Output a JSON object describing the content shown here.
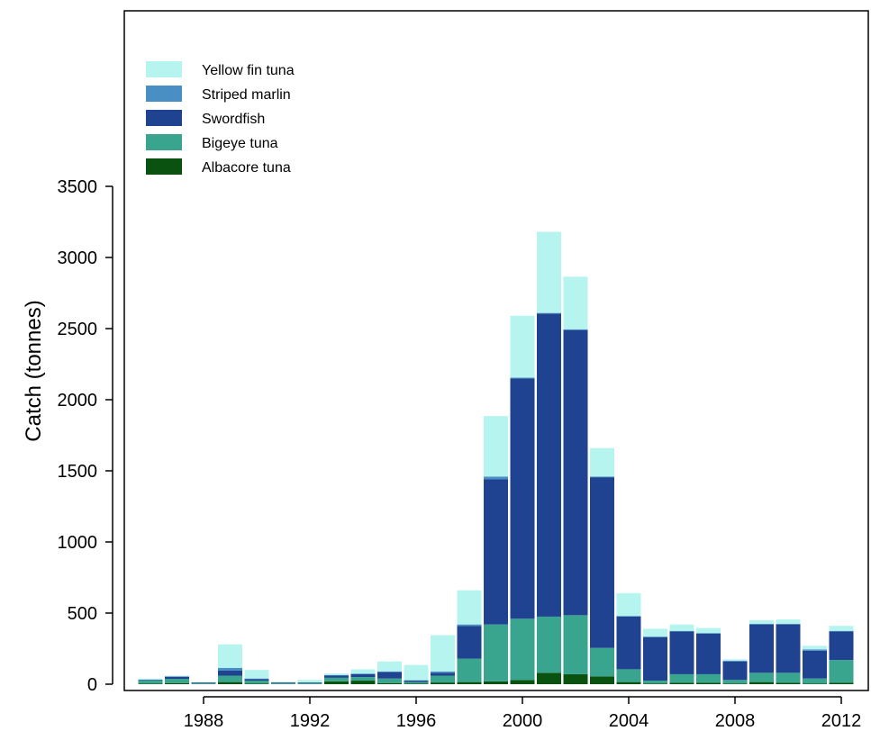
{
  "chart_data": {
    "type": "bar",
    "stacked": true,
    "ylabel": "Catch (tonnes)",
    "xlabel": "",
    "ylim": [
      0,
      4400
    ],
    "y_ticks": [
      0,
      500,
      1000,
      1500,
      2000,
      2500,
      3000,
      3500
    ],
    "x_ticks": [
      "1988",
      "1992",
      "1996",
      "2000",
      "2004",
      "2008",
      "2012"
    ],
    "legend_position": "top-left",
    "categories": [
      "1986",
      "1987",
      "1988",
      "1989",
      "1990",
      "1991",
      "1992",
      "1993",
      "1994",
      "1995",
      "1996",
      "1997",
      "1998",
      "1999",
      "2000",
      "2001",
      "2002",
      "2003",
      "2004",
      "2005",
      "2006",
      "2007",
      "2008",
      "2009",
      "2010",
      "2011",
      "2012"
    ],
    "series": [
      {
        "name": "Albacore tuna",
        "color": "#0a5210",
        "values": [
          5,
          8,
          2,
          15,
          5,
          2,
          2,
          20,
          25,
          8,
          5,
          12,
          15,
          20,
          30,
          80,
          70,
          55,
          15,
          5,
          10,
          10,
          5,
          15,
          10,
          5,
          10
        ]
      },
      {
        "name": "Bigeye tuna",
        "color": "#3aa58e",
        "values": [
          20,
          30,
          5,
          45,
          20,
          5,
          5,
          25,
          25,
          32,
          10,
          48,
          165,
          400,
          430,
          395,
          415,
          200,
          90,
          20,
          60,
          60,
          25,
          65,
          70,
          35,
          160
        ]
      },
      {
        "name": "Swordfish",
        "color": "#1f4390",
        "values": [
          5,
          15,
          5,
          35,
          10,
          5,
          5,
          15,
          20,
          45,
          10,
          20,
          230,
          1020,
          1690,
          2130,
          2005,
          1200,
          370,
          305,
          300,
          285,
          130,
          340,
          340,
          195,
          200
        ]
      },
      {
        "name": "Striped marlin",
        "color": "#4a8fc4",
        "values": [
          2,
          2,
          1,
          20,
          5,
          2,
          1,
          5,
          5,
          5,
          3,
          10,
          10,
          20,
          5,
          5,
          5,
          5,
          5,
          5,
          5,
          5,
          5,
          5,
          5,
          10,
          5
        ]
      },
      {
        "name": "Yellow fin tuna",
        "color": "#b6f5ef",
        "values": [
          8,
          5,
          2,
          165,
          60,
          3,
          17,
          10,
          30,
          70,
          107,
          255,
          240,
          425,
          435,
          570,
          370,
          200,
          160,
          55,
          45,
          35,
          10,
          25,
          30,
          25,
          35
        ]
      }
    ],
    "legend_order": [
      "Yellow fin tuna",
      "Striped marlin",
      "Swordfish",
      "Bigeye tuna",
      "Albacore tuna"
    ]
  }
}
